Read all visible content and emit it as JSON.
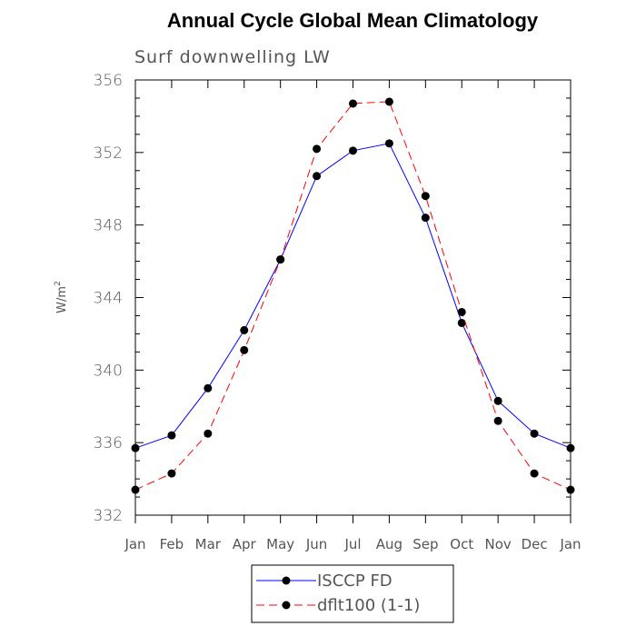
{
  "chart_data": {
    "type": "line",
    "title": "Annual Cycle Global Mean Climatology",
    "subtitle": "Surf downwelling LW",
    "xlabel": "",
    "ylabel": "W/m",
    "ylabel_superscript": "2",
    "categories": [
      "Jan",
      "Feb",
      "Mar",
      "Apr",
      "May",
      "Jun",
      "Jul",
      "Aug",
      "Sep",
      "Oct",
      "Nov",
      "Dec",
      "Jan"
    ],
    "ylim": [
      332,
      356
    ],
    "yticks": [
      332,
      336,
      340,
      344,
      348,
      352,
      356
    ],
    "ytick_labels": [
      "332",
      "336",
      "340",
      "344",
      "348",
      "352",
      "356"
    ],
    "grid": false,
    "legend_position": "bottom",
    "series": [
      {
        "name": "ISCCP FD",
        "color": "#0000ff",
        "dash": "solid",
        "marker": "filled-circle",
        "values": [
          335.7,
          336.4,
          339.0,
          342.2,
          346.1,
          350.7,
          352.1,
          352.5,
          348.4,
          342.6,
          338.3,
          336.5,
          335.7
        ]
      },
      {
        "name": "dflt100 (1-1)",
        "color": "#ff0000",
        "dash": "dashed",
        "marker": "filled-circle",
        "values": [
          333.4,
          334.3,
          336.5,
          341.1,
          346.1,
          352.2,
          354.7,
          354.8,
          349.6,
          343.2,
          337.2,
          334.3,
          333.4
        ]
      }
    ]
  }
}
